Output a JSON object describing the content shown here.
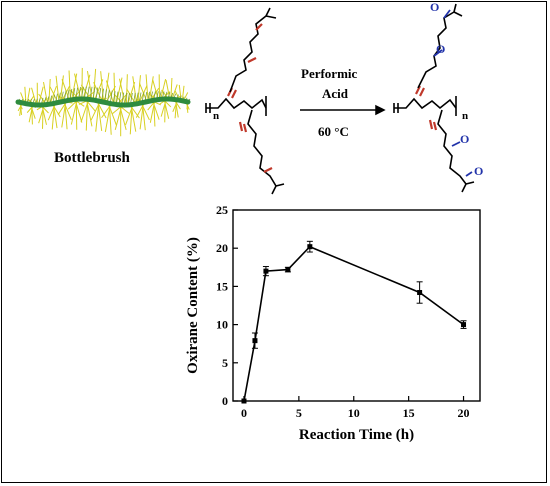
{
  "scheme": {
    "bottlebrush_label": "Bottlebrush",
    "reagent_line1": "Performic",
    "reagent_line2": "Acid",
    "condition": "60 °C",
    "repeat_subscript": "n",
    "epoxide_label": "O",
    "colors": {
      "double_bond": "#c0392b",
      "epoxide": "#2233aa",
      "brush_core": "#2e8b3e",
      "brush_bristles": "#d8d020"
    }
  },
  "chart_data": {
    "type": "line",
    "title": "",
    "xlabel": "Reaction Time (h)",
    "ylabel": "Oxirane Content (%)",
    "xlim": [
      -1,
      21.5
    ],
    "ylim": [
      0,
      25
    ],
    "xticks": [
      "0",
      "5",
      "10",
      "15",
      "20"
    ],
    "yticks": [
      "0",
      "5",
      "10",
      "15",
      "20",
      "25"
    ],
    "grid": false,
    "marker": "square",
    "series": [
      {
        "x": [
          0,
          1,
          2,
          4,
          6,
          16,
          20
        ],
        "values": [
          0,
          7.9,
          17.0,
          17.2,
          20.2,
          14.2,
          10.0
        ],
        "errors": [
          0,
          1.0,
          0.6,
          0.3,
          0.7,
          1.4,
          0.5
        ]
      }
    ]
  }
}
